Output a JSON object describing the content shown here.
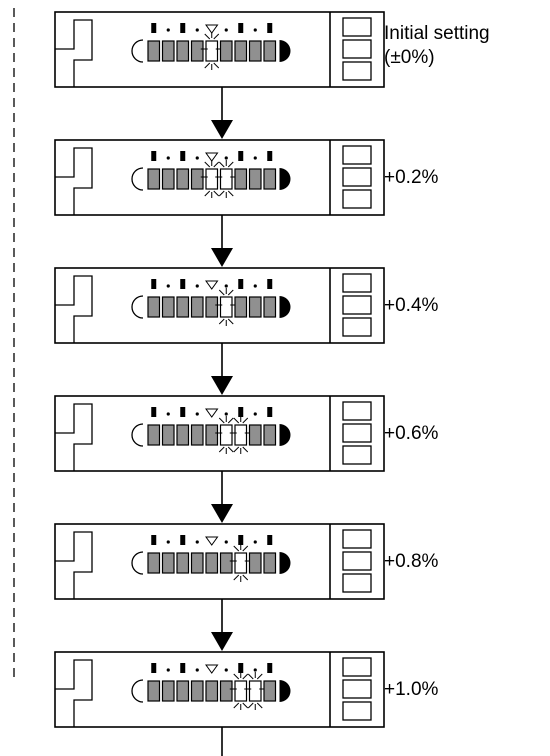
{
  "steps": [
    {
      "label_line1": "Initial setting",
      "label_line2": "(±0%)",
      "lit": [
        4
      ]
    },
    {
      "label_line1": "+0.2%",
      "label_line2": "",
      "lit": [
        4,
        5
      ]
    },
    {
      "label_line1": "+0.4%",
      "label_line2": "",
      "lit": [
        5
      ]
    },
    {
      "label_line1": "+0.6%",
      "label_line2": "",
      "lit": [
        5,
        6
      ]
    },
    {
      "label_line1": "+0.8%",
      "label_line2": "",
      "lit": [
        6
      ]
    },
    {
      "label_line1": "+1.0%",
      "label_line2": "",
      "lit": [
        6,
        7
      ]
    }
  ],
  "colors": {
    "line": "#000000",
    "segment_off": "#909090",
    "segment_lit": "#ffffff"
  }
}
